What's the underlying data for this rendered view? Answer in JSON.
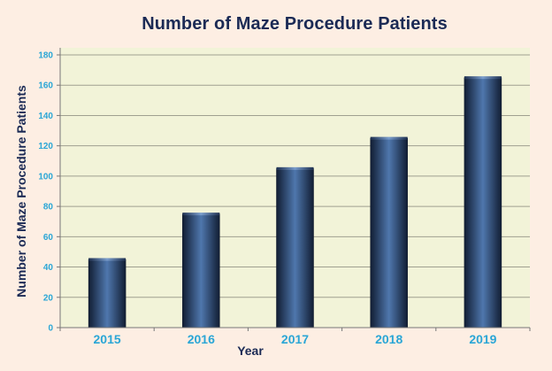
{
  "chart_data": {
    "type": "bar",
    "title": "Number of Maze Procedure Patients",
    "xlabel": "Year",
    "ylabel": "Number of Maze Procedure Patients",
    "categories": [
      "2015",
      "2016",
      "2017",
      "2018",
      "2019"
    ],
    "values": [
      45,
      75,
      105,
      125,
      165
    ],
    "ylim": [
      0,
      180
    ],
    "yticks": [
      0,
      20,
      40,
      60,
      80,
      100,
      120,
      140,
      160,
      180
    ],
    "grid": true,
    "colors": {
      "bar": "#2c4a78",
      "plot_background": "#f2f3d8",
      "gridline": "#a0a090",
      "tick_labels": "#2aa6d6",
      "title": "#1b2a55"
    }
  }
}
